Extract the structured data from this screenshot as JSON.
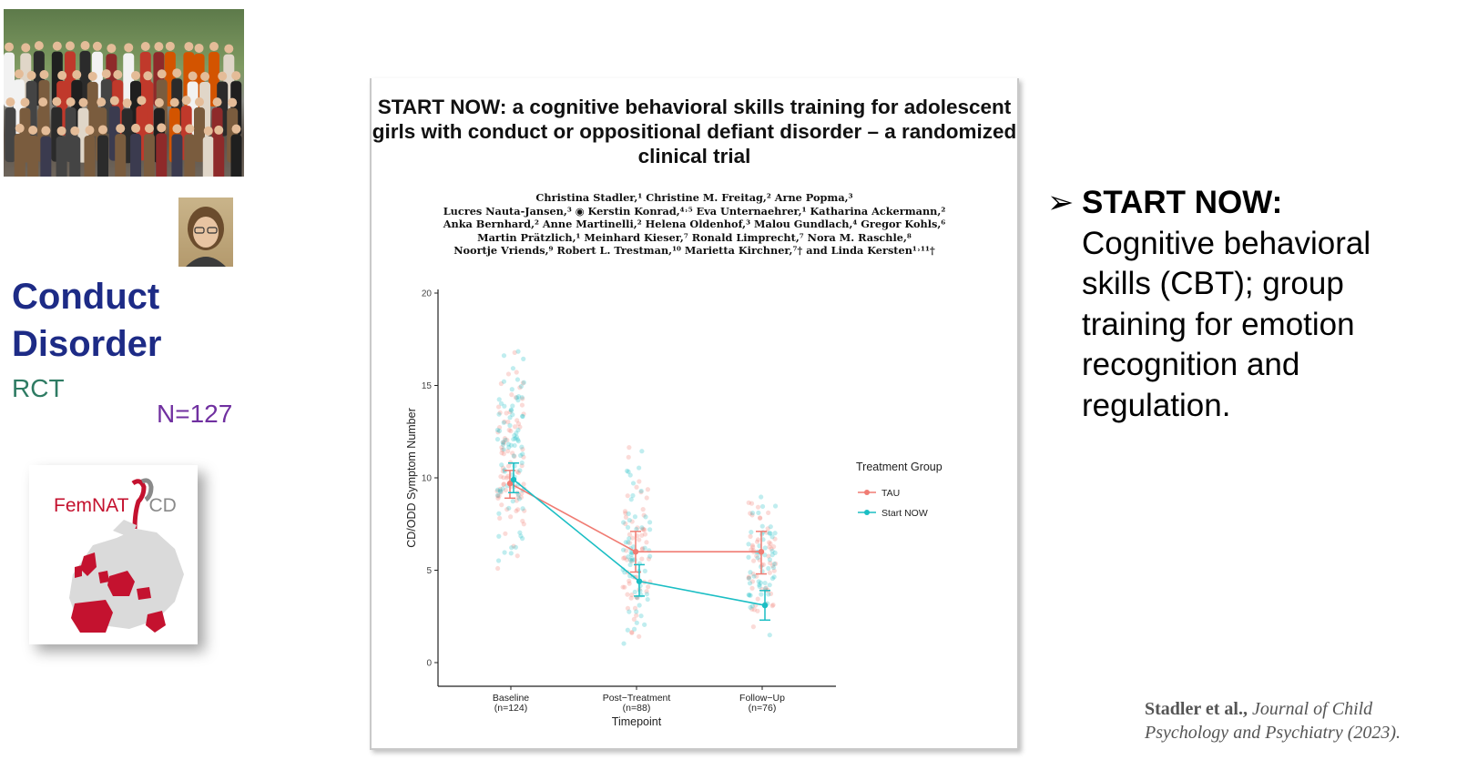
{
  "left": {
    "title_line1": "Conduct",
    "title_line2": "Disorder",
    "design": "RCT",
    "sample": "N=127",
    "logo_text_main": "FemNAT",
    "logo_text_cd": "CD"
  },
  "paper": {
    "title": "START NOW: a cognitive behavioral skills training for adolescent girls with conduct or oppositional defiant disorder – a randomized clinical trial",
    "author_lines": [
      "Christina Stadler,¹ Christine M. Freitag,² Arne Popma,³",
      "Lucres Nauta-Jansen,³ ◉ Kerstin Konrad,⁴˒⁵ Eva Unternaehrer,¹ Katharina Ackermann,²",
      "Anka Bernhard,² Anne Martinelli,² Helena Oldenhof,³ Malou Gundlach,⁴ Gregor Kohls,⁶",
      "Martin Prätzlich,¹ Meinhard Kieser,⁷ Ronald Limprecht,⁷ Nora M. Raschle,⁸",
      "Noortje Vriends,⁹ Robert L. Trestman,¹⁰ Marietta Kirchner,⁷† and Linda Kersten¹˒¹¹†"
    ]
  },
  "chart_data": {
    "type": "line",
    "xlabel": "Timepoint",
    "ylabel": "CD/ODD Symptom Number",
    "ylim": [
      0,
      20
    ],
    "yticks": [
      0,
      5,
      10,
      15,
      20
    ],
    "categories": [
      {
        "line1": "Baseline",
        "line2": "(n=124)"
      },
      {
        "line1": "Post−Treatment",
        "line2": "(n=88)"
      },
      {
        "line1": "Follow−Up",
        "line2": "(n=76)"
      }
    ],
    "legend_title": "Treatment Group",
    "legend_position": "right",
    "series": [
      {
        "name": "TAU",
        "color": "#f07c73",
        "values": [
          9.7,
          6.0,
          6.0
        ],
        "err_low": [
          8.9,
          4.9,
          4.8
        ],
        "err_high": [
          10.4,
          7.1,
          7.1
        ]
      },
      {
        "name": "Start NOW",
        "color": "#1bbec4",
        "values": [
          9.9,
          4.4,
          3.1
        ],
        "err_low": [
          9.2,
          3.6,
          2.3
        ],
        "err_high": [
          10.8,
          5.3,
          3.9
        ]
      }
    ]
  },
  "right": {
    "bullet_head": "START NOW:",
    "bullet_body": "Cognitive behavioral skills (CBT); group training for emotion recognition and regulation."
  },
  "citation": {
    "authors": "Stadler et al.,",
    "journal_line1": "Journal of Child",
    "journal_line2": "Psychology and Psychiatry (2023)."
  }
}
